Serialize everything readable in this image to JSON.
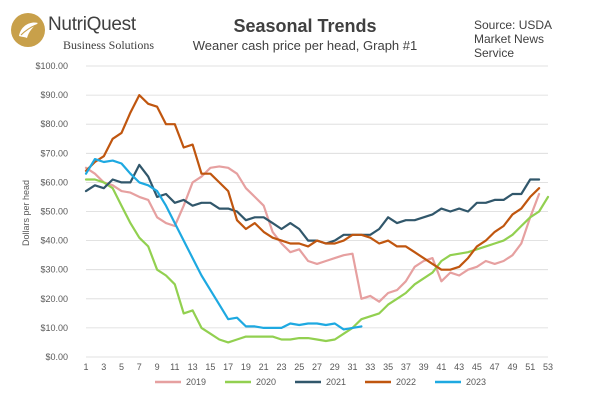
{
  "brand": {
    "name": "NutriQuest",
    "sub": "Business Solutions"
  },
  "source": "Source: USDA\nMarket News\nService",
  "chart_data": {
    "type": "line",
    "title": "Seasonal Trends",
    "subtitle": "Weaner cash price per head, Graph #1",
    "xlabel": "",
    "ylabel": "Dollars per head",
    "xlim": [
      1,
      53
    ],
    "ylim": [
      0,
      100
    ],
    "x_ticks": [
      1,
      3,
      5,
      7,
      9,
      11,
      13,
      15,
      17,
      19,
      21,
      23,
      25,
      27,
      29,
      31,
      33,
      35,
      37,
      39,
      41,
      43,
      45,
      47,
      49,
      51,
      53
    ],
    "y_ticks": [
      0,
      10,
      20,
      30,
      40,
      50,
      60,
      70,
      80,
      90,
      100
    ],
    "y_tick_labels": [
      "$0.00",
      "$10.00",
      "$20.00",
      "$30.00",
      "$40.00",
      "$50.00",
      "$60.00",
      "$70.00",
      "$80.00",
      "$90.00",
      "$100.00"
    ],
    "grid": true,
    "legend_position": "bottom",
    "series": [
      {
        "name": "2019",
        "color": "#e6a0a0",
        "x": [
          1,
          2,
          3,
          4,
          5,
          6,
          7,
          8,
          9,
          10,
          11,
          12,
          13,
          14,
          15,
          16,
          17,
          18,
          19,
          20,
          21,
          22,
          23,
          24,
          25,
          26,
          27,
          28,
          29,
          30,
          31,
          32,
          33,
          34,
          35,
          36,
          37,
          38,
          39,
          40,
          41,
          42,
          43,
          44,
          45,
          46,
          47,
          48,
          49,
          50,
          51,
          52
        ],
        "values": [
          65,
          63,
          60,
          59,
          57,
          56.5,
          55,
          54,
          48,
          46,
          45,
          52,
          60,
          62,
          65,
          65.5,
          65,
          63,
          58,
          55,
          52,
          43,
          39,
          36,
          37,
          33,
          32,
          33,
          34,
          35,
          35.5,
          20,
          21,
          19,
          22,
          23,
          26,
          31,
          33,
          34,
          26,
          29,
          28,
          30,
          31,
          33,
          32,
          33,
          35,
          39,
          48,
          56
        ]
      },
      {
        "name": "2020",
        "color": "#92d050",
        "x": [
          1,
          2,
          3,
          4,
          5,
          6,
          7,
          8,
          9,
          10,
          11,
          12,
          13,
          14,
          15,
          16,
          17,
          18,
          19,
          20,
          21,
          22,
          23,
          24,
          25,
          26,
          27,
          28,
          29,
          30,
          31,
          32,
          33,
          34,
          35,
          36,
          37,
          38,
          39,
          40,
          41,
          42,
          43,
          44,
          45,
          46,
          47,
          48,
          49,
          50,
          51,
          52,
          53
        ],
        "values": [
          61,
          61,
          60,
          58,
          52,
          46,
          41,
          38,
          30,
          28,
          25,
          15,
          16,
          10,
          8,
          6,
          5,
          6,
          7,
          7,
          7,
          7,
          6,
          6,
          6.5,
          6.5,
          6,
          5.5,
          6,
          8,
          10,
          13,
          14,
          15,
          18,
          20,
          22,
          25,
          27,
          29,
          33,
          35,
          35.5,
          36,
          37,
          38,
          39,
          40,
          42,
          45,
          48,
          50,
          55
        ]
      },
      {
        "name": "2021",
        "color": "#31576b",
        "x": [
          1,
          2,
          3,
          4,
          5,
          6,
          7,
          8,
          9,
          10,
          11,
          12,
          13,
          14,
          15,
          16,
          17,
          18,
          19,
          20,
          21,
          22,
          23,
          24,
          25,
          26,
          27,
          28,
          29,
          30,
          31,
          32,
          33,
          34,
          35,
          36,
          37,
          38,
          39,
          40,
          41,
          42,
          43,
          44,
          45,
          46,
          47,
          48,
          49,
          50,
          51,
          52
        ],
        "values": [
          57,
          59,
          58,
          61,
          60,
          60,
          66,
          62,
          55,
          56,
          53,
          54,
          52,
          53,
          53,
          51,
          51,
          50,
          47,
          48,
          48,
          46,
          44,
          46,
          44,
          40,
          40,
          39,
          40,
          42,
          42,
          42,
          42,
          44,
          48,
          46,
          47,
          47,
          48,
          49,
          51,
          50,
          51,
          50,
          53,
          53,
          54,
          54,
          56,
          56,
          61,
          61
        ]
      },
      {
        "name": "2022",
        "color": "#c0560f",
        "x": [
          1,
          2,
          3,
          4,
          5,
          6,
          7,
          8,
          9,
          10,
          11,
          12,
          13,
          14,
          15,
          16,
          17,
          18,
          19,
          20,
          21,
          22,
          23,
          24,
          25,
          26,
          27,
          28,
          29,
          30,
          31,
          32,
          33,
          34,
          35,
          36,
          37,
          38,
          39,
          40,
          41,
          42,
          43,
          44,
          45,
          46,
          47,
          48,
          49,
          50,
          51,
          52
        ],
        "values": [
          64,
          67,
          69,
          75,
          77,
          84,
          90,
          87,
          86,
          80,
          80,
          72,
          73,
          63,
          63,
          60,
          57,
          47,
          44,
          46,
          43,
          41,
          40,
          39,
          39,
          38,
          40,
          39,
          39,
          40,
          42,
          42,
          41,
          39,
          40,
          38,
          38,
          36,
          34,
          32,
          30,
          30,
          31,
          34,
          38,
          40,
          43,
          45,
          49,
          51,
          55,
          58
        ]
      },
      {
        "name": "2023",
        "color": "#1ea9e1",
        "x": [
          1,
          2,
          3,
          4,
          5,
          6,
          7,
          8,
          9,
          10,
          11,
          12,
          13,
          14,
          15,
          16,
          17,
          18,
          19,
          20,
          21,
          22,
          23,
          24,
          25,
          26,
          27,
          28,
          29,
          30,
          31,
          32
        ],
        "values": [
          63,
          68,
          67,
          67.5,
          66.5,
          63,
          60,
          59,
          57,
          52,
          46,
          40,
          34,
          28,
          23,
          18,
          13,
          13.5,
          10.5,
          10.5,
          10,
          10,
          10,
          11.5,
          11,
          11.5,
          11.5,
          11,
          11.5,
          9.5,
          10,
          10.5
        ]
      }
    ]
  }
}
